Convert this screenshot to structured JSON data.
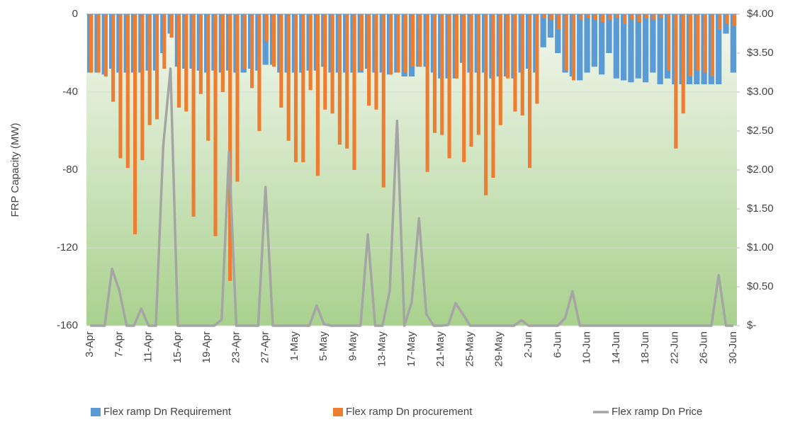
{
  "chart_data": {
    "type": "bar-line",
    "y_label": "FRP Capacity (MW)",
    "categories": [
      "3-Apr",
      null,
      null,
      null,
      "7-Apr",
      null,
      null,
      null,
      "11-Apr",
      null,
      null,
      null,
      "15-Apr",
      null,
      null,
      null,
      "19-Apr",
      null,
      null,
      null,
      "23-Apr",
      null,
      null,
      null,
      "27-Apr",
      null,
      null,
      null,
      "1-May",
      null,
      null,
      null,
      "5-May",
      null,
      null,
      null,
      "9-May",
      null,
      null,
      null,
      "13-May",
      null,
      null,
      null,
      "17-May",
      null,
      null,
      null,
      "21-May",
      null,
      null,
      null,
      "25-May",
      null,
      null,
      null,
      "29-May",
      null,
      null,
      null,
      "2-Jun",
      null,
      null,
      null,
      "6-Jun",
      null,
      null,
      null,
      "10-Jun",
      null,
      null,
      null,
      "14-Jun",
      null,
      null,
      null,
      "18-Jun",
      null,
      null,
      null,
      "22-Jun",
      null,
      null,
      null,
      "26-Jun",
      null,
      null,
      null,
      "30-Jun"
    ],
    "series": [
      {
        "name": "Flex ramp Dn Requirement",
        "color": "#5b9bd5",
        "kind": "bar",
        "values": [
          -30,
          -30,
          -31,
          -28,
          -30,
          -30,
          -30,
          -30,
          -29,
          -29,
          -20,
          -10,
          -27,
          -28,
          -28,
          -29,
          -30,
          -29,
          -30,
          -29,
          -30,
          -30,
          -28,
          -29,
          -26,
          -26,
          -30,
          -30,
          -30,
          -30,
          -29,
          -29,
          -27,
          -30,
          -30,
          -30,
          -30,
          -30,
          -28,
          -30,
          -30,
          -31,
          -30,
          -32,
          -32,
          -27,
          -27,
          -30,
          -33,
          -33,
          -33,
          -25,
          -30,
          -30,
          -30,
          -33,
          -32,
          -32,
          -33,
          -30,
          -28,
          -30,
          -17,
          -12,
          -20,
          -30,
          -32,
          -34,
          -30,
          -27,
          -31,
          -20,
          -33,
          -34,
          -35,
          -33,
          -35,
          -30,
          -36,
          -33,
          -36,
          -36,
          -36,
          -36,
          -36,
          -36,
          -36,
          -10,
          -30
        ]
      },
      {
        "name": "Flex ramp Dn procurement",
        "color": "#ed7d31",
        "kind": "bar",
        "values": [
          -30,
          -30,
          -32,
          -45,
          -74,
          -79,
          -113,
          -75,
          -57,
          -54,
          -28,
          -12,
          -48,
          -50,
          -104,
          -41,
          -65,
          -114,
          -40,
          -137,
          -86,
          -28,
          -38,
          -60,
          -14,
          -27,
          -48,
          -65,
          -76,
          -76,
          -39,
          -83,
          -49,
          -51,
          -67,
          -69,
          -80,
          -29,
          -47,
          -49,
          -89,
          -31,
          -30,
          -30,
          -27,
          -27,
          -81,
          -61,
          -62,
          -74,
          -33,
          -76,
          -68,
          -62,
          -93,
          -84,
          -57,
          -33,
          -50,
          -52,
          -79,
          -46,
          -2,
          -3,
          -8,
          -29,
          -34,
          -3,
          -2,
          -3,
          -4,
          -3,
          -2,
          -5,
          -3,
          -4,
          -2,
          -3,
          -2,
          -29,
          -69,
          -51,
          -32,
          -29,
          -30,
          -32,
          -8,
          -5,
          -6
        ]
      },
      {
        "name": "Flex ramp Dn Price",
        "color": "#a5a5a5",
        "kind": "line",
        "axis": "y2",
        "values": [
          0,
          0,
          0,
          0.73,
          0.45,
          0,
          0,
          0.22,
          0,
          0,
          2.3,
          3.3,
          0,
          0,
          0,
          0,
          0,
          0,
          0.08,
          2.23,
          0,
          0,
          0,
          0,
          1.78,
          0,
          0,
          0,
          0,
          0,
          0,
          0.26,
          0.02,
          0,
          0,
          0,
          0,
          0,
          1.17,
          0,
          0,
          0.45,
          2.63,
          0,
          0.3,
          1.38,
          0.15,
          0,
          0,
          0.01,
          0.29,
          0.15,
          0,
          0,
          0,
          0,
          0,
          0,
          0,
          0.07,
          0,
          0,
          0,
          0,
          0,
          0.1,
          0.44,
          0,
          0,
          0,
          0,
          0,
          0,
          0,
          0,
          0,
          0,
          0,
          0,
          0,
          0,
          0,
          0,
          0,
          0,
          0,
          0.65,
          0,
          0
        ]
      }
    ],
    "ylim": [
      -160,
      0
    ],
    "yticks": [
      0,
      -40,
      -80,
      -120,
      -160
    ],
    "y2lim": [
      0,
      4
    ],
    "y2ticks": [
      {
        "value": 4,
        "label": "$4.00"
      },
      {
        "value": 3.5,
        "label": "$3.50"
      },
      {
        "value": 3,
        "label": "$3.00"
      },
      {
        "value": 2.5,
        "label": "$2.50"
      },
      {
        "value": 2,
        "label": "$2.00"
      },
      {
        "value": 1.5,
        "label": "$1.50"
      },
      {
        "value": 1,
        "label": "$1.00"
      },
      {
        "value": 0.5,
        "label": "$0.50"
      },
      {
        "value": 0,
        "label": "$-"
      }
    ],
    "grid": true
  }
}
